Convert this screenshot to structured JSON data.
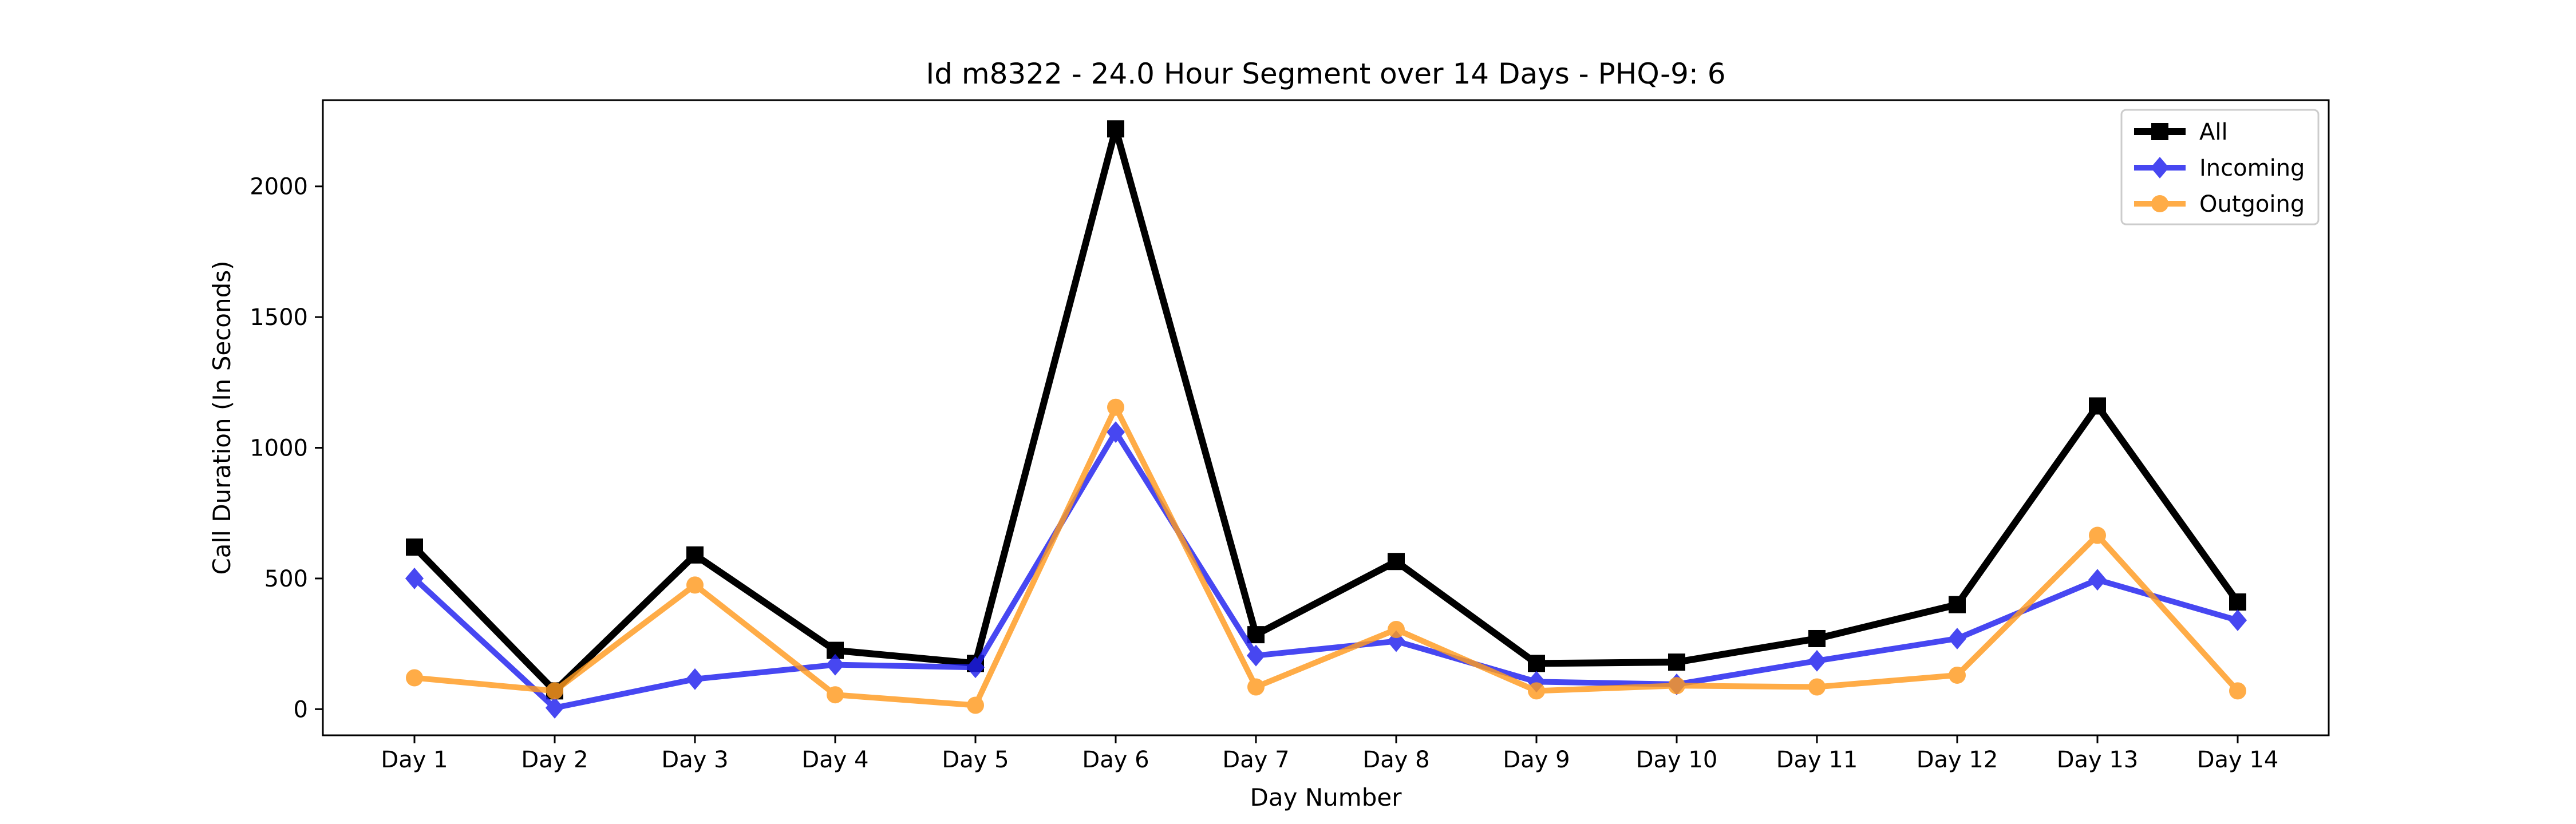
{
  "chart_data": {
    "type": "line",
    "title": "Id m8322 - 24.0 Hour Segment over 14 Days - PHQ-9: 6",
    "xlabel": "Day Number",
    "ylabel": "Call Duration (In Seconds)",
    "categories": [
      "Day 1",
      "Day 2",
      "Day 3",
      "Day 4",
      "Day 5",
      "Day 6",
      "Day 7",
      "Day 8",
      "Day 9",
      "Day 10",
      "Day 11",
      "Day 12",
      "Day 13",
      "Day 14"
    ],
    "ylim": [
      -100,
      2330
    ],
    "yticks": [
      0,
      500,
      1000,
      1500,
      2000
    ],
    "grid": false,
    "legend_position": "top-right",
    "series": [
      {
        "name": "All",
        "color": "#000000",
        "marker": "square",
        "values": [
          620,
          70,
          590,
          225,
          175,
          2220,
          285,
          565,
          175,
          180,
          270,
          400,
          1160,
          410
        ]
      },
      {
        "name": "Incoming",
        "color": "#1f1fef",
        "marker": "diamond",
        "values": [
          500,
          5,
          115,
          170,
          160,
          1060,
          205,
          260,
          105,
          95,
          185,
          270,
          495,
          340
        ]
      },
      {
        "name": "Outgoing",
        "color": "#ff9a1f",
        "marker": "circle",
        "values": [
          120,
          70,
          475,
          55,
          15,
          1155,
          85,
          305,
          70,
          90,
          85,
          130,
          665,
          70
        ]
      }
    ]
  }
}
